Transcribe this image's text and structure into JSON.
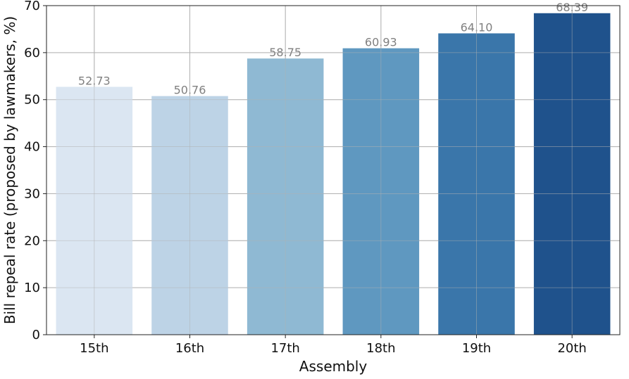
{
  "chart_data": {
    "type": "bar",
    "categories": [
      "15th",
      "16th",
      "17th",
      "18th",
      "19th",
      "20th"
    ],
    "values": [
      52.73,
      50.76,
      58.75,
      60.93,
      64.1,
      68.39
    ],
    "value_labels": [
      "52.73",
      "50.76",
      "58.75",
      "60.93",
      "64.10",
      "68.39"
    ],
    "bar_colors": [
      "#dbe6f2",
      "#bdd3e6",
      "#8fb9d3",
      "#5f98c0",
      "#3a76aa",
      "#1f528c"
    ],
    "xlabel": "Assembly",
    "ylabel": "Bill repeal rate (proposed by lawmakers, %)",
    "ylim": [
      0,
      70
    ],
    "yticks": [
      0,
      10,
      20,
      30,
      40,
      50,
      60,
      70
    ],
    "grid": true
  }
}
